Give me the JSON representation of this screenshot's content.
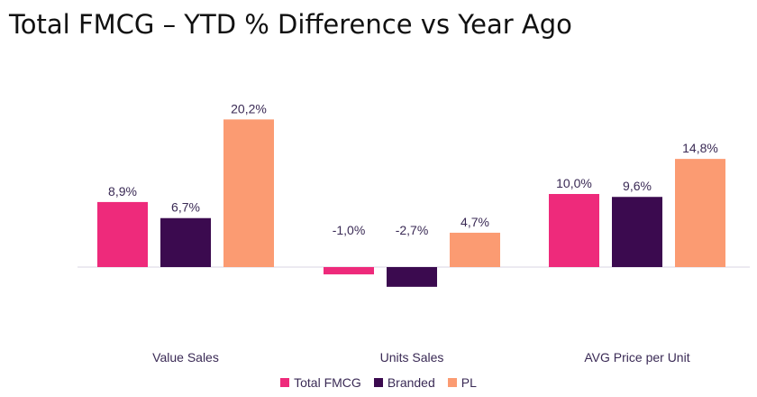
{
  "title": "Total FMCG – YTD % Difference vs Year Ago",
  "chart_data": {
    "type": "bar",
    "categories": [
      "Value Sales",
      "Units Sales",
      "AVG Price per Unit"
    ],
    "series": [
      {
        "name": "Total FMCG",
        "color": "#ee2a7b",
        "values": [
          8.9,
          -1.0,
          10.0
        ],
        "labels": [
          "8,9%",
          "-1,0%",
          "10,0%"
        ]
      },
      {
        "name": "Branded",
        "color": "#3b0a4f",
        "values": [
          6.7,
          -2.7,
          9.6
        ],
        "labels": [
          "6,7%",
          "-2,7%",
          "9,6%"
        ]
      },
      {
        "name": "PL",
        "color": "#fb9b72",
        "values": [
          20.2,
          4.7,
          14.8
        ],
        "labels": [
          "20,2%",
          "4,7%",
          "14,8%"
        ]
      }
    ],
    "legend_position": "bottom-center",
    "grid": false
  }
}
